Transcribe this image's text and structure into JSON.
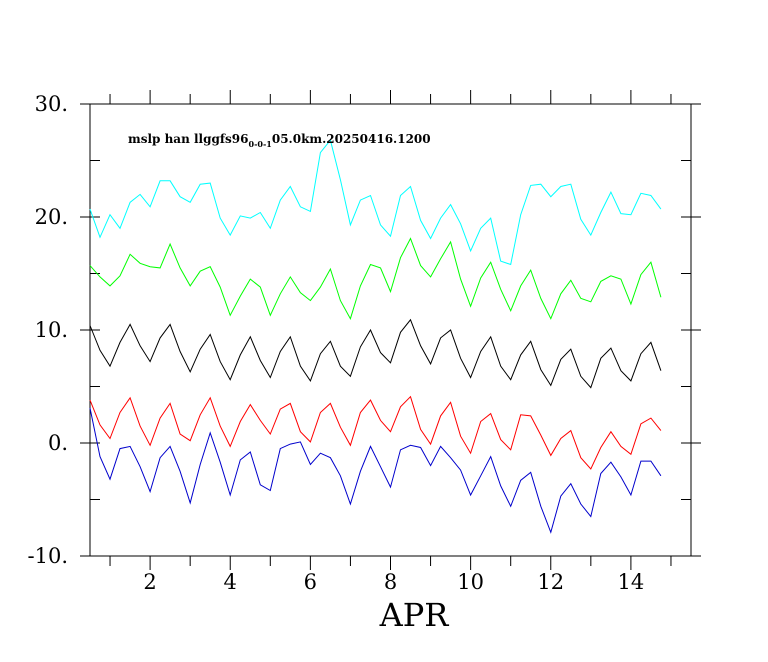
{
  "chart_data": {
    "type": "line",
    "title": "mslp han llggfs96",
    "title_subscript": "0-0-1",
    "title_suffix": "05.0km.20250416.1200",
    "xlabel": "APR",
    "ylabel": "",
    "xlim": [
      0.5,
      15.5
    ],
    "ylim": [
      -10,
      30
    ],
    "xticks": [
      2,
      4,
      6,
      8,
      10,
      12,
      14
    ],
    "xtick_labels": [
      "2",
      "4",
      "6",
      "8",
      "10",
      "12",
      "14"
    ],
    "yticks": [
      -10,
      0,
      10,
      20,
      30
    ],
    "ytick_labels": [
      "-10.",
      "0.",
      "10.",
      "20.",
      "30."
    ],
    "grid": false,
    "x": [
      0.5,
      0.75,
      1,
      1.25,
      1.5,
      1.75,
      2,
      2.25,
      2.5,
      2.75,
      3,
      3.25,
      3.5,
      3.75,
      4,
      4.25,
      4.5,
      4.75,
      5,
      5.25,
      5.5,
      5.75,
      6,
      6.25,
      6.5,
      6.75,
      7,
      7.25,
      7.5,
      7.75,
      8,
      8.25,
      8.5,
      8.75,
      9,
      9.25,
      9.5,
      9.75,
      10,
      10.25,
      10.5,
      10.75,
      11,
      11.25,
      11.5,
      11.75,
      12,
      12.25,
      12.5,
      12.75,
      13,
      13.25,
      13.5,
      13.75,
      14,
      14.25,
      14.5,
      14.75
    ],
    "series": [
      {
        "color": "#00ffff",
        "values": [
          20.7,
          18.2,
          20.2,
          19,
          21.3,
          22,
          20.9,
          23.2,
          23.2,
          21.8,
          21.3,
          22.9,
          23,
          19.9,
          18.4,
          20.1,
          19.9,
          20.4,
          19,
          21.5,
          22.7,
          20.9,
          20.5,
          25.7,
          26.8,
          23.3,
          19.3,
          21.5,
          21.9,
          19.3,
          18.3,
          21.9,
          22.7,
          19.7,
          18.1,
          19.9,
          21.1,
          19.4,
          17,
          19,
          19.9,
          16.1,
          15.8,
          20.2,
          22.8,
          22.9,
          21.8,
          22.7,
          22.9,
          19.8,
          18.4,
          20.4,
          22.2,
          20.3,
          20.2,
          22.1,
          21.9,
          20.7
        ]
      },
      {
        "color": "#00ff00",
        "values": [
          15.7,
          14.7,
          13.9,
          14.8,
          16.7,
          15.9,
          15.6,
          15.5,
          17.6,
          15.5,
          13.9,
          15.2,
          15.6,
          13.8,
          11.3,
          13,
          14.5,
          13.8,
          11.3,
          13.2,
          14.7,
          13.3,
          12.6,
          13.8,
          15.4,
          12.6,
          11,
          13.9,
          15.8,
          15.5,
          13.4,
          16.4,
          18.1,
          15.7,
          14.7,
          16.3,
          17.8,
          14.5,
          12.1,
          14.6,
          16,
          13.6,
          11.7,
          13.9,
          15.3,
          12.8,
          11,
          13.2,
          14.4,
          12.8,
          12.5,
          14.3,
          14.8,
          14.5,
          12.3,
          14.9,
          16,
          12.9
        ]
      },
      {
        "color": "#000000",
        "values": [
          10.4,
          8.2,
          6.8,
          8.9,
          10.5,
          8.6,
          7.2,
          9.3,
          10.5,
          8.1,
          6.3,
          8.3,
          9.6,
          7.2,
          5.6,
          7.8,
          9.4,
          7.3,
          5.8,
          8.1,
          9.4,
          6.8,
          5.5,
          7.9,
          9,
          6.8,
          5.9,
          8.5,
          10,
          8,
          7.1,
          9.8,
          10.9,
          8.6,
          7,
          9.3,
          10,
          7.5,
          5.8,
          8.1,
          9.4,
          6.8,
          5.6,
          7.8,
          9,
          6.5,
          5.1,
          7.4,
          8.3,
          5.9,
          4.9,
          7.5,
          8.4,
          6.4,
          5.5,
          7.9,
          8.9,
          6.4
        ]
      },
      {
        "color": "#ff0000",
        "values": [
          3.8,
          1.6,
          0.4,
          2.7,
          4,
          1.5,
          -0.2,
          2.2,
          3.5,
          0.8,
          0.2,
          2.5,
          4,
          1.5,
          -0.3,
          1.9,
          3.4,
          2,
          0.8,
          3,
          3.5,
          1,
          0.1,
          2.7,
          3.5,
          1.4,
          -0.2,
          2.7,
          3.8,
          2,
          1,
          3.2,
          4.1,
          1.2,
          -0.1,
          2.4,
          3.6,
          0.6,
          -0.9,
          1.9,
          2.6,
          0.3,
          -0.6,
          2.5,
          2.4,
          0.7,
          -1.1,
          0.4,
          1.1,
          -1.3,
          -2.3,
          -0.4,
          1,
          -0.3,
          -1,
          1.7,
          2.2,
          1.1
        ]
      },
      {
        "color": "#0000cc",
        "values": [
          3.1,
          -1.2,
          -3.2,
          -0.5,
          -0.3,
          -2.1,
          -4.3,
          -1.3,
          -0.3,
          -2.5,
          -5.3,
          -1.9,
          0.9,
          -1.7,
          -4.6,
          -1.5,
          -0.8,
          -3.7,
          -4.2,
          -0.5,
          -0.1,
          0.1,
          -1.9,
          -0.9,
          -1.3,
          -2.9,
          -5.4,
          -2.5,
          -0.3,
          -2.1,
          -3.9,
          -0.6,
          -0.2,
          -0.4,
          -2,
          -0.3,
          -1.3,
          -2.4,
          -4.6,
          -2.9,
          -1.2,
          -3.8,
          -5.6,
          -3.3,
          -2.6,
          -5.6,
          -7.9,
          -4.7,
          -3.6,
          -5.4,
          -6.5,
          -2.7,
          -1.7,
          -3,
          -4.6,
          -1.6,
          -1.6,
          -2.9
        ]
      }
    ]
  }
}
